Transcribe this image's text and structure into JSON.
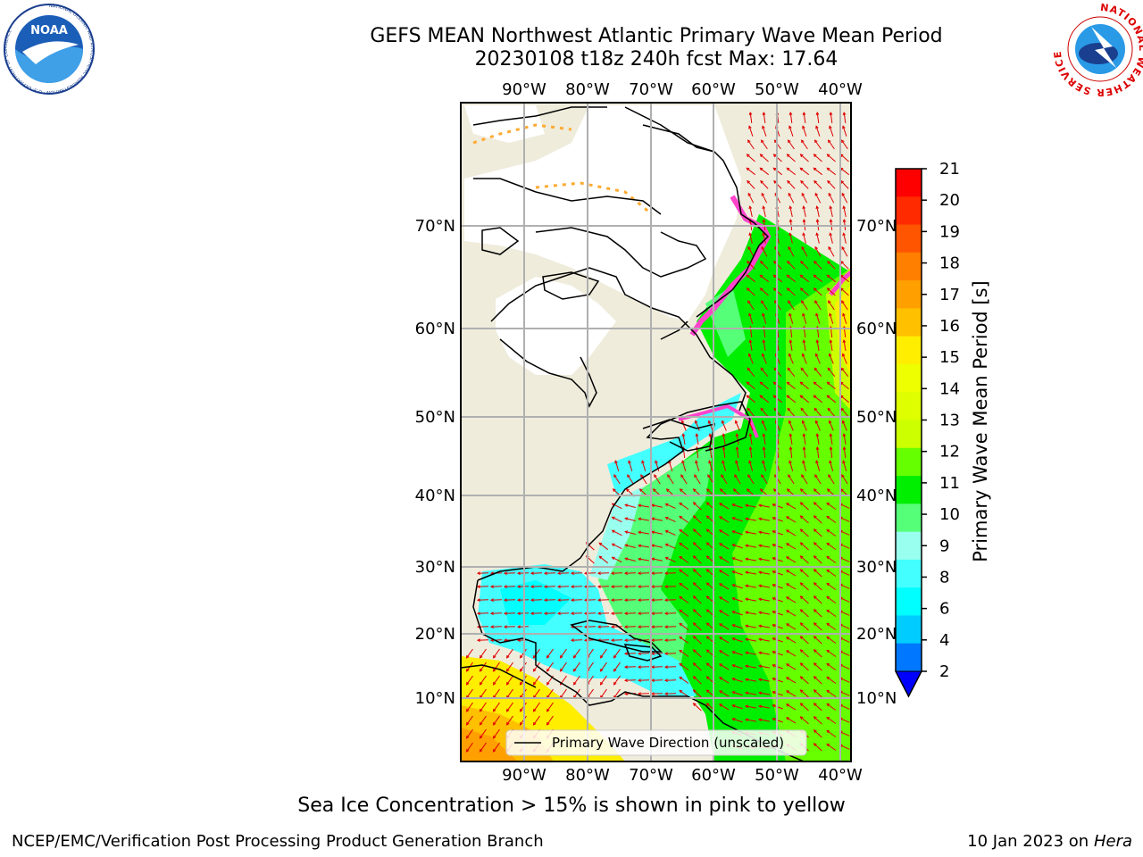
{
  "title": {
    "line1": "GEFS MEAN Northwest Atlantic Primary Wave Mean Period",
    "line2": "20230108 t18z 240h fcst   Max: 17.64"
  },
  "map": {
    "lon_labels": [
      "90°W",
      "80°W",
      "70°W",
      "60°W",
      "50°W",
      "40°W"
    ],
    "lat_labels": [
      "70°N",
      "60°N",
      "50°N",
      "40°N",
      "30°N",
      "20°N",
      "10°N"
    ],
    "legend_label": "Primary Wave Direction (unscaled)"
  },
  "colorbar": {
    "label": "Primary Wave Mean Period [s]",
    "ticks": [
      "21",
      "20",
      "19",
      "18",
      "17",
      "16",
      "15",
      "14",
      "13",
      "12",
      "11",
      "10",
      "9",
      "8",
      "6",
      "4",
      "2"
    ],
    "colors": [
      "#ff0000",
      "#ff2a00",
      "#ff5500",
      "#ff7f00",
      "#ffa000",
      "#ffc000",
      "#ffee00",
      "#eeff00",
      "#ddff00",
      "#ccff00",
      "#66ff00",
      "#00ee00",
      "#55ff77",
      "#99ffee",
      "#44ffff",
      "#00ffff",
      "#00ccff",
      "#0077ff"
    ],
    "extend_color": "#0000ff"
  },
  "caption": "Sea Ice Concentration > 15% is shown in pink to yellow",
  "footer": {
    "left": "NCEP/EMC/Verification Post Processing Product Generation Branch",
    "right_date": "10 Jan 2023 on",
    "right_host": "Hera"
  },
  "logos": {
    "noaa_text": "NOAA",
    "noaa_ring": "NATIONAL OCEANIC AND ATMOSPHERIC ADMINISTRATION · U.S. DEPARTMENT OF COMMERCE ·",
    "nws_ring": "NATIONAL WEATHER SERVICE"
  }
}
